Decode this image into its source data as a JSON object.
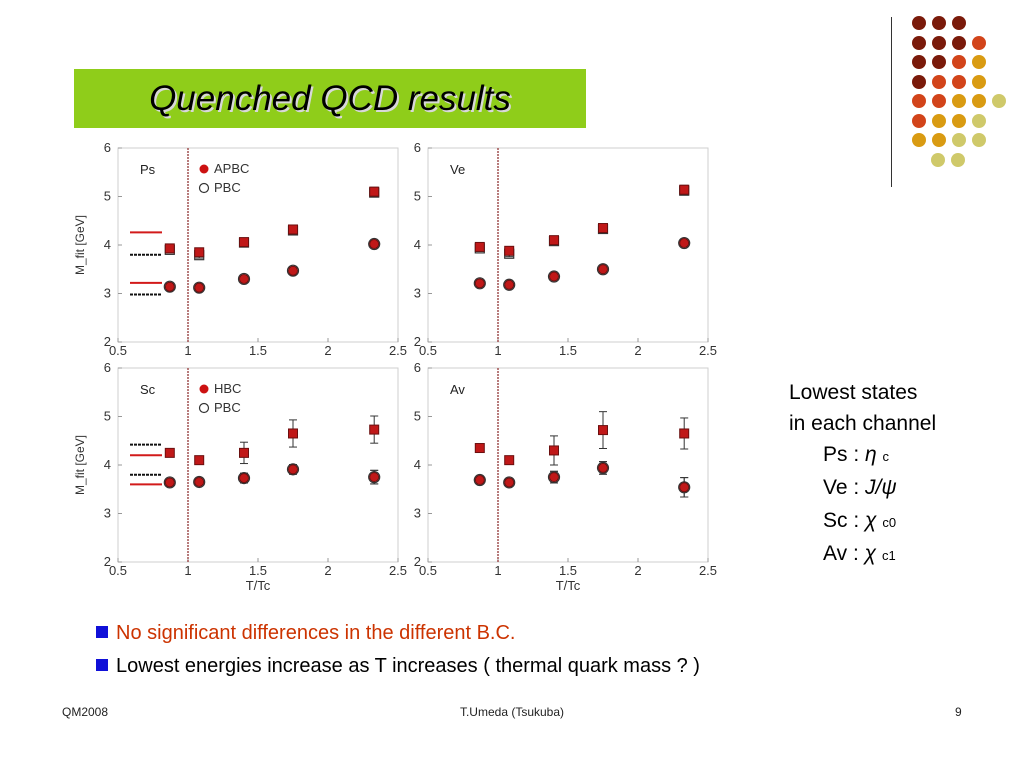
{
  "slide": {
    "title": "Quenched QCD results",
    "side_lines": [
      "Lowest states",
      "in each channel"
    ],
    "channels": [
      {
        "name": "Ps :",
        "symbol": "η",
        "sub": "c"
      },
      {
        "name": "Ve :",
        "symbol": "J/ψ",
        "sub": ""
      },
      {
        "name": "Sc :",
        "symbol": "χ",
        "sub": "c0"
      },
      {
        "name": "Av :",
        "symbol": "χ",
        "sub": "c1"
      }
    ],
    "bullets": [
      {
        "text": "No significant differences in the different B.C.",
        "color": "#cc3300"
      },
      {
        "text": "Lowest energies increase as T increases ( thermal quark mass ? )",
        "color": "#000000"
      }
    ],
    "footer": {
      "left": "QM2008",
      "center": "T.Umeda (Tsukuba)",
      "right": "9"
    },
    "colors": {
      "title_bg": "#8fcd1a",
      "bullet": "#1010d8",
      "apbc": "#cc1111"
    }
  },
  "decor": {
    "dot_rows": [
      [
        "#7a1a0a",
        "#7a1a0a",
        "#7a1a0a"
      ],
      [
        "#7a1a0a",
        "#7a1a0a",
        "#7a1a0a",
        "#d2441a"
      ],
      [
        "#7a1a0a",
        "#7a1a0a",
        "#d2441a",
        "#d99b12"
      ],
      [
        "#7a1a0a",
        "#d2441a",
        "#d2441a",
        "#d99b12"
      ],
      [
        "#d2441a",
        "#d2441a",
        "#d99b12",
        "#d99b12",
        "#cfc96a"
      ],
      [
        "#d2441a",
        "#d99b12",
        "#d99b12",
        "#cfc96a"
      ],
      [
        "#d99b12",
        "#d99b12",
        "#cfc96a",
        "#cfc96a"
      ],
      [
        "#cfc96a",
        "#cfc96a"
      ]
    ]
  },
  "chart_data": [
    {
      "type": "scatter",
      "label": "Ps",
      "legend": [
        "APBC",
        "PBC"
      ],
      "xlabel": "",
      "ylabel": "M_fit [GeV]",
      "xlim": [
        0.5,
        2.5
      ],
      "ylim": [
        2,
        6
      ],
      "xticks": [
        "0.5",
        "1",
        "1.5",
        "2",
        "2.5"
      ],
      "yticks": [
        "2",
        "3",
        "4",
        "5",
        "6"
      ],
      "tc_line": 1.0,
      "series": [
        {
          "name": "APBC",
          "marker": "square",
          "x": [
            0.87,
            1.08,
            1.4,
            1.75,
            2.33
          ],
          "y": [
            3.93,
            3.85,
            4.06,
            4.32,
            5.1
          ],
          "err": [
            0.06,
            0.06,
            0.06,
            0.07,
            0.09
          ]
        },
        {
          "name": "PBC",
          "marker": "square",
          "x": [
            0.87,
            1.08,
            1.4,
            1.75,
            2.33
          ],
          "y": [
            3.9,
            3.79,
            4.05,
            4.3,
            5.08
          ],
          "err": [
            0.06,
            0.06,
            0.06,
            0.07,
            0.09
          ]
        },
        {
          "name": "APBC",
          "marker": "circle",
          "x": [
            0.87,
            1.08,
            1.4,
            1.75,
            2.33
          ],
          "y": [
            3.14,
            3.12,
            3.3,
            3.47,
            4.02
          ],
          "err": [
            0.04,
            0.04,
            0.04,
            0.04,
            0.05
          ]
        },
        {
          "name": "PBC",
          "marker": "circle",
          "x": [
            0.87,
            1.08,
            1.4,
            1.75,
            2.33
          ],
          "y": [
            3.14,
            3.12,
            3.3,
            3.47,
            4.02
          ],
          "err": [
            0.04,
            0.04,
            0.04,
            0.04,
            0.05
          ]
        }
      ],
      "ref_lines": [
        {
          "y": 4.26,
          "color": "red"
        },
        {
          "y": 3.8,
          "color": "black"
        },
        {
          "y": 3.22,
          "color": "red"
        },
        {
          "y": 2.98,
          "color": "black"
        }
      ]
    },
    {
      "type": "scatter",
      "label": "Ve",
      "legend": [],
      "xlabel": "",
      "ylabel": "",
      "xlim": [
        0.5,
        2.5
      ],
      "ylim": [
        2,
        6
      ],
      "xticks": [
        "0.5",
        "1",
        "1.5",
        "2",
        "2.5"
      ],
      "yticks": [
        "2",
        "3",
        "4",
        "5",
        "6"
      ],
      "tc_line": 1.0,
      "series": [
        {
          "name": "APBC",
          "marker": "square",
          "x": [
            0.87,
            1.08,
            1.4,
            1.75,
            2.33
          ],
          "y": [
            3.96,
            3.88,
            4.1,
            4.35,
            5.14
          ],
          "err": [
            0.06,
            0.06,
            0.06,
            0.07,
            0.09
          ]
        },
        {
          "name": "PBC",
          "marker": "square",
          "x": [
            0.87,
            1.08,
            1.4,
            1.75,
            2.33
          ],
          "y": [
            3.93,
            3.82,
            4.08,
            4.33,
            5.12
          ],
          "err": [
            0.06,
            0.06,
            0.06,
            0.07,
            0.09
          ]
        },
        {
          "name": "APBC",
          "marker": "circle",
          "x": [
            0.87,
            1.08,
            1.4,
            1.75,
            2.33
          ],
          "y": [
            3.21,
            3.18,
            3.35,
            3.5,
            4.04
          ],
          "err": [
            0.04,
            0.04,
            0.04,
            0.04,
            0.05
          ]
        },
        {
          "name": "PBC",
          "marker": "circle",
          "x": [
            0.87,
            1.08,
            1.4,
            1.75,
            2.33
          ],
          "y": [
            3.21,
            3.18,
            3.35,
            3.5,
            4.04
          ],
          "err": [
            0.04,
            0.04,
            0.04,
            0.04,
            0.05
          ]
        }
      ],
      "ref_lines": []
    },
    {
      "type": "scatter",
      "label": "Sc",
      "legend": [
        "HBC",
        "PBC"
      ],
      "xlabel": "T/Tc",
      "ylabel": "M_fit [GeV]",
      "xlim": [
        0.5,
        2.5
      ],
      "ylim": [
        2,
        6
      ],
      "xticks": [
        "0.5",
        "1",
        "1.5",
        "2",
        "2.5"
      ],
      "yticks": [
        "2",
        "3",
        "4",
        "5",
        "6"
      ],
      "tc_line": 1.0,
      "series": [
        {
          "name": "HBC",
          "marker": "square",
          "x": [
            0.87,
            1.08,
            1.4,
            1.75,
            2.33
          ],
          "y": [
            4.25,
            4.1,
            4.25,
            4.65,
            4.73
          ],
          "err": [
            0.06,
            0.07,
            0.22,
            0.28,
            0.28
          ]
        },
        {
          "name": "HBC",
          "marker": "circle",
          "x": [
            0.87,
            1.08,
            1.4,
            1.75,
            2.33
          ],
          "y": [
            3.64,
            3.65,
            3.73,
            3.91,
            3.75
          ],
          "err": [
            0.05,
            0.05,
            0.1,
            0.1,
            0.14
          ]
        },
        {
          "name": "PBC",
          "marker": "circle",
          "x": [
            0.87,
            1.08,
            1.4,
            1.75,
            2.33
          ],
          "y": [
            3.64,
            3.65,
            3.73,
            3.91,
            3.75
          ],
          "err": [
            0.05,
            0.05,
            0.1,
            0.1,
            0.14
          ]
        }
      ],
      "ref_lines": [
        {
          "y": 4.42,
          "color": "black"
        },
        {
          "y": 4.2,
          "color": "red"
        },
        {
          "y": 3.8,
          "color": "black"
        },
        {
          "y": 3.6,
          "color": "red"
        }
      ]
    },
    {
      "type": "scatter",
      "label": "Av",
      "legend": [],
      "xlabel": "T/Tc",
      "ylabel": "",
      "xlim": [
        0.5,
        2.5
      ],
      "ylim": [
        2,
        6
      ],
      "xticks": [
        "0.5",
        "1",
        "1.5",
        "2",
        "2.5"
      ],
      "yticks": [
        "2",
        "3",
        "4",
        "5",
        "6"
      ],
      "tc_line": 1.0,
      "series": [
        {
          "name": "HBC",
          "marker": "square",
          "x": [
            0.87,
            1.08,
            1.4,
            1.75,
            2.33
          ],
          "y": [
            4.35,
            4.1,
            4.3,
            4.72,
            4.65
          ],
          "err": [
            0.06,
            0.06,
            0.3,
            0.38,
            0.32
          ]
        },
        {
          "name": "HBC",
          "marker": "circle",
          "x": [
            0.87,
            1.08,
            1.4,
            1.75,
            2.33
          ],
          "y": [
            3.69,
            3.64,
            3.75,
            3.94,
            3.54
          ],
          "err": [
            0.05,
            0.05,
            0.12,
            0.13,
            0.2
          ]
        },
        {
          "name": "PBC",
          "marker": "circle",
          "x": [
            0.87,
            1.08,
            1.4,
            1.75,
            2.33
          ],
          "y": [
            3.69,
            3.64,
            3.75,
            3.94,
            3.54
          ],
          "err": [
            0.05,
            0.05,
            0.12,
            0.13,
            0.2
          ]
        }
      ],
      "ref_lines": []
    }
  ]
}
